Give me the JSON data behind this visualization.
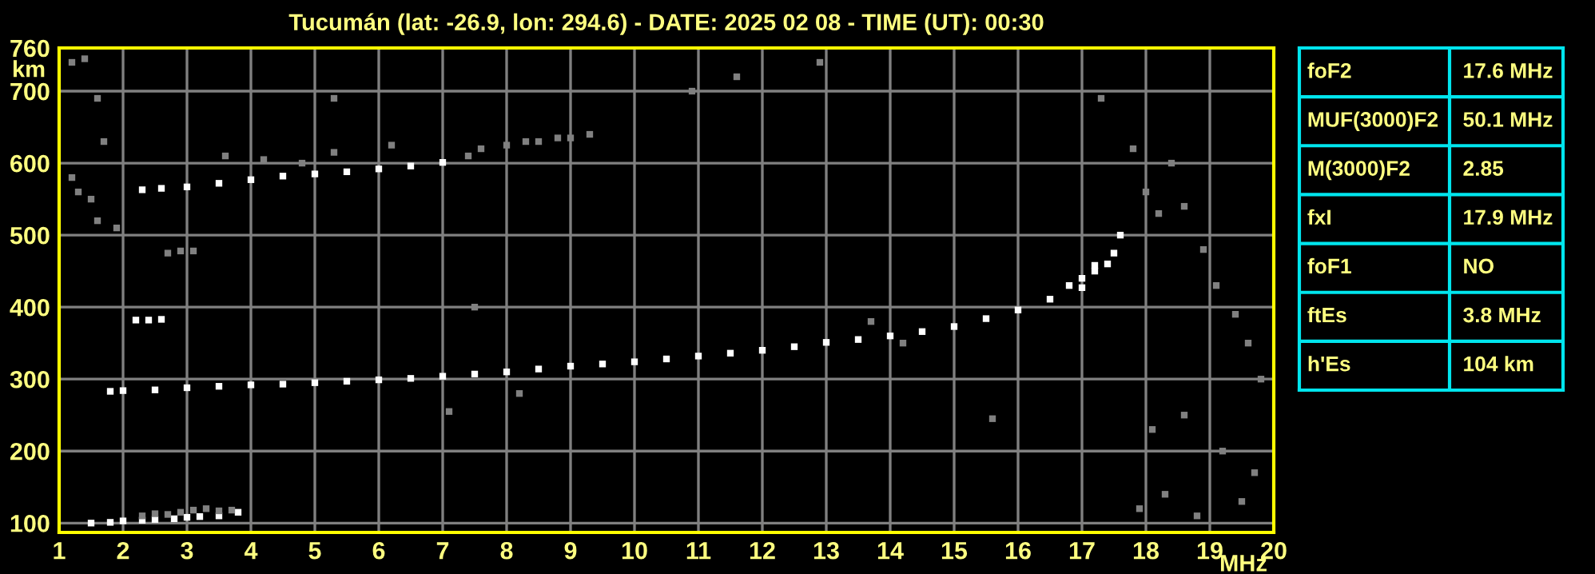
{
  "chart_data": [
    {
      "type": "scatter",
      "title": "Tucumán (lat: -26.9, lon: 294.6) - DATE: 2025 02 08 - TIME (UT): 00:30",
      "xlabel": "MHz",
      "ylabel": "km",
      "marker": "square",
      "grid": true,
      "legend": false,
      "xlim": [
        1,
        20
      ],
      "ylim": [
        87,
        760
      ],
      "xticks": [
        1,
        2,
        3,
        4,
        5,
        6,
        7,
        8,
        9,
        10,
        11,
        12,
        13,
        14,
        15,
        16,
        17,
        18,
        19,
        20
      ],
      "yticks": [
        100,
        200,
        300,
        400,
        500,
        600,
        700,
        760
      ],
      "series": [
        {
          "color": "#ffffff",
          "x": [
            1.8,
            2,
            2.5,
            3,
            3.5,
            4,
            4.5,
            5,
            5.5,
            6,
            6.5,
            7,
            7.5,
            8,
            8.5,
            9,
            9.5,
            10,
            10.5,
            11,
            11.5,
            12,
            12.5,
            13,
            13.5,
            14,
            14.5,
            15,
            15.5,
            16,
            16.5,
            17,
            17.2
          ],
          "values": [
            283,
            284,
            285,
            288,
            290,
            292,
            293,
            295,
            297,
            299,
            301,
            304,
            307,
            310,
            314,
            318,
            321,
            324,
            328,
            332,
            336,
            340,
            345,
            351,
            355,
            360,
            366,
            373,
            384,
            396,
            411,
            427,
            458
          ]
        },
        {
          "color": "#ffffff",
          "x": [
            16.8,
            17,
            17.2,
            17.4,
            17.5,
            17.6
          ],
          "values": [
            430,
            440,
            450,
            460,
            475,
            500
          ]
        },
        {
          "color": "#ffffff",
          "x": [
            2.3,
            2.6,
            3,
            3.5,
            4,
            4.5,
            5,
            5.5,
            6,
            6.5,
            7
          ],
          "values": [
            563,
            565,
            567,
            572,
            577,
            582,
            585,
            588,
            592,
            596,
            601
          ]
        },
        {
          "color": "#808080",
          "x": [
            3.6,
            4.2,
            4.8,
            5.3,
            6.2,
            7.4,
            7.6,
            8,
            8.3,
            8.5,
            8.8,
            9,
            9.3
          ],
          "values": [
            610,
            605,
            600,
            615,
            625,
            610,
            620,
            625,
            630,
            630,
            635,
            635,
            640
          ]
        },
        {
          "color": "#ffffff",
          "x": [
            1.5,
            1.8,
            2,
            2.3,
            2.5,
            2.8,
            3,
            3.2,
            3.5,
            3.8
          ],
          "values": [
            100,
            101,
            103,
            104,
            105,
            106,
            108,
            109,
            110,
            115
          ]
        },
        {
          "color": "#808080",
          "x": [
            2.3,
            2.5,
            2.7,
            2.9,
            3.1,
            3.3,
            3.5,
            3.7
          ],
          "values": [
            110,
            113,
            112,
            115,
            118,
            120,
            117,
            118
          ]
        },
        {
          "color": "#ffffff",
          "x": [
            2.2,
            2.4,
            2.6
          ],
          "values": [
            382,
            382,
            383
          ]
        },
        {
          "color": "#808080",
          "x": [
            2.7,
            2.9,
            3.1
          ],
          "values": [
            475,
            478,
            478
          ]
        },
        {
          "color": "#808080",
          "x": [
            1.2,
            1.3,
            1.5,
            1.6,
            1.2,
            1.4,
            1.6,
            1.7,
            1.9,
            5.3,
            7.1,
            7.5,
            8.2,
            10.9,
            11.6,
            12.9,
            13.7,
            14.2,
            15.6,
            17.3,
            17.8,
            18.0,
            18.2,
            18.4,
            18.6,
            18.9,
            19.1,
            19.4,
            19.6,
            19.8,
            18.1,
            18.6,
            19.2,
            19.7,
            17.9,
            18.3,
            18.8,
            19.5
          ],
          "values": [
            580,
            560,
            550,
            520,
            740,
            745,
            690,
            630,
            510,
            690,
            255,
            400,
            280,
            700,
            720,
            740,
            380,
            350,
            245,
            690,
            620,
            560,
            530,
            600,
            540,
            480,
            430,
            390,
            350,
            300,
            230,
            250,
            200,
            170,
            120,
            140,
            110,
            130
          ]
        }
      ]
    },
    {
      "type": "other",
      "annotations": [
        "foF2",
        "17.6 MHz",
        "MUF(3000)F2",
        "50.1 MHz",
        "M(3000)F2",
        "2.85",
        "fxI",
        "17.9 MHz",
        "foF1",
        "NO",
        "ftEs",
        "3.8 MHz",
        "h'Es",
        "104 km"
      ]
    }
  ]
}
